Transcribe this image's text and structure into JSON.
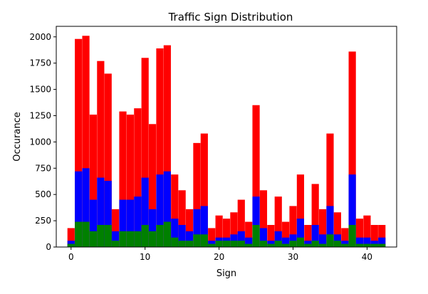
{
  "chart_data": {
    "type": "bar",
    "stacked": false,
    "overlapping": true,
    "title": "Traffic Sign Distribution",
    "xlabel": "Sign",
    "ylabel": "Occurance",
    "xlim": [
      -2,
      44
    ],
    "ylim": [
      0,
      2100
    ],
    "x_ticks": [
      0,
      10,
      20,
      30,
      40
    ],
    "y_ticks": [
      0,
      250,
      500,
      750,
      1000,
      1250,
      1500,
      1750,
      2000
    ],
    "grid": false,
    "legend": "none",
    "categories": [
      0,
      1,
      2,
      3,
      4,
      5,
      6,
      7,
      8,
      9,
      10,
      11,
      12,
      13,
      14,
      15,
      16,
      17,
      18,
      19,
      20,
      21,
      22,
      23,
      24,
      25,
      26,
      27,
      28,
      29,
      30,
      31,
      32,
      33,
      34,
      35,
      36,
      37,
      38,
      39,
      40,
      41,
      42
    ],
    "series": [
      {
        "color": "#ff0000",
        "values": [
          180,
          1980,
          2010,
          1260,
          1770,
          1650,
          360,
          1290,
          1260,
          1320,
          1800,
          1170,
          1890,
          1920,
          690,
          540,
          360,
          990,
          1080,
          180,
          300,
          270,
          330,
          450,
          240,
          1350,
          540,
          210,
          480,
          240,
          390,
          690,
          210,
          600,
          360,
          1080,
          330,
          180,
          1860,
          270,
          300,
          210,
          210
        ]
      },
      {
        "color": "#0000ff",
        "values": [
          60,
          720,
          750,
          450,
          660,
          630,
          150,
          450,
          450,
          480,
          660,
          360,
          690,
          720,
          270,
          210,
          150,
          360,
          390,
          60,
          90,
          90,
          120,
          150,
          90,
          480,
          180,
          60,
          150,
          90,
          120,
          270,
          60,
          210,
          120,
          390,
          120,
          60,
          690,
          90,
          90,
          60,
          90
        ]
      },
      {
        "color": "#008000",
        "values": [
          30,
          240,
          240,
          150,
          210,
          210,
          60,
          150,
          150,
          150,
          210,
          150,
          210,
          240,
          90,
          60,
          60,
          120,
          120,
          30,
          60,
          60,
          60,
          60,
          30,
          210,
          60,
          30,
          60,
          30,
          60,
          90,
          30,
          60,
          30,
          120,
          60,
          30,
          210,
          30,
          30,
          30,
          30
        ]
      }
    ]
  }
}
